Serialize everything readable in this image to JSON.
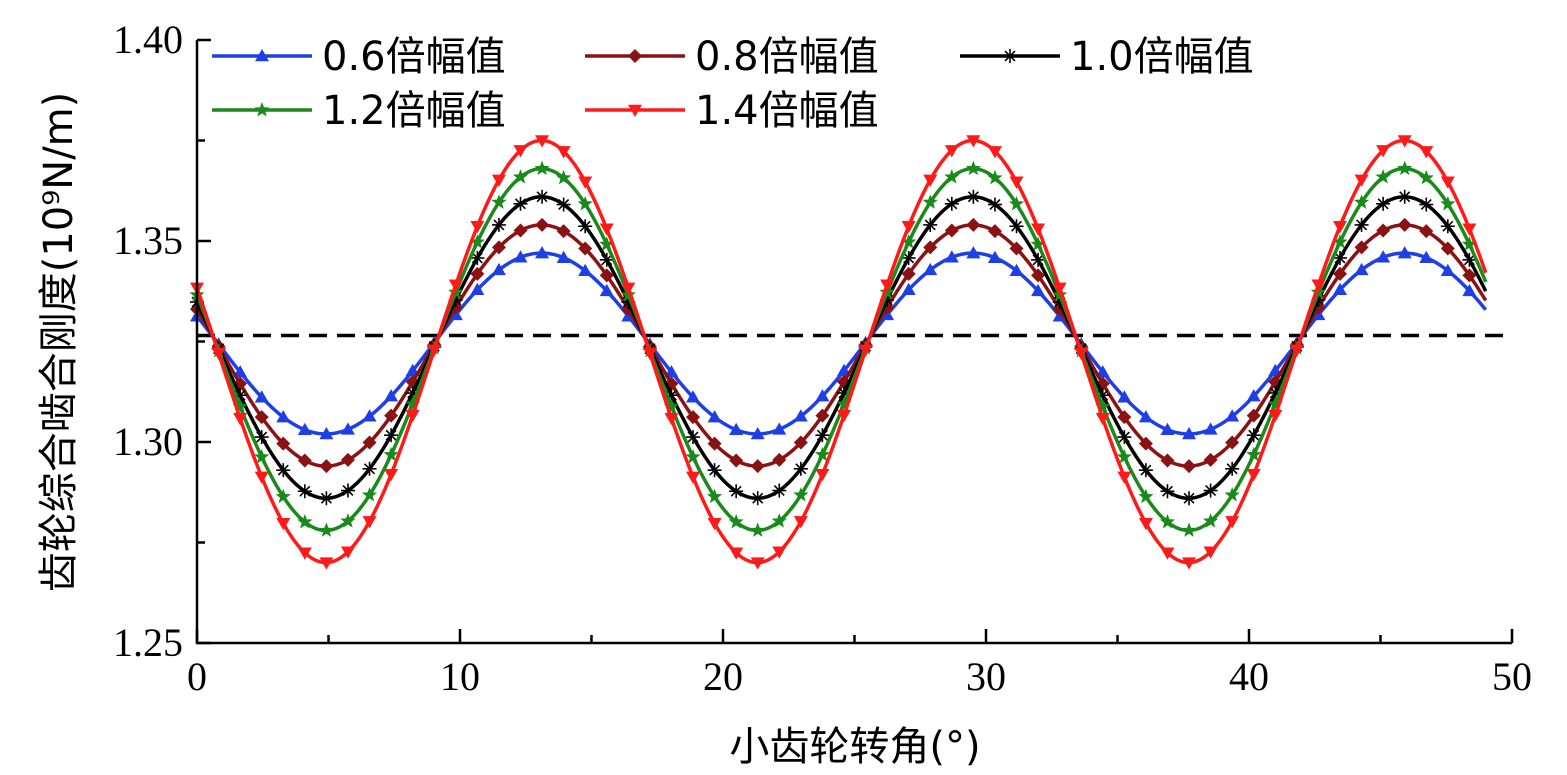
{
  "chart_data": {
    "type": "line",
    "xlabel": "小齿轮转角(°)",
    "ylabel": "齿轮综合啮合刚度(10⁹N/m)",
    "xlim": [
      0,
      50
    ],
    "ylim": [
      1.25,
      1.4
    ],
    "x_ticks": [
      "0",
      "10",
      "20",
      "30",
      "40",
      "50"
    ],
    "y_ticks": [
      "1.25",
      "1.30",
      "1.35",
      "1.40"
    ],
    "grid": false,
    "legend_position": "top",
    "period_deg": 16.4,
    "x_range": [
      0,
      49
    ],
    "reference_line": {
      "y": 1.3265,
      "style": "dashed",
      "color": "#000000"
    },
    "series": [
      {
        "name": "0.6倍幅值",
        "color": "#1f3fe6",
        "marker": "triangle-up",
        "mean": 1.3245,
        "amplitude": 0.0225
      },
      {
        "name": "0.8倍幅值",
        "color": "#8b1212",
        "marker": "diamond",
        "mean": 1.324,
        "amplitude": 0.03
      },
      {
        "name": "1.0倍幅值",
        "color": "#000000",
        "marker": "asterisk",
        "mean": 1.3235,
        "amplitude": 0.0375
      },
      {
        "name": "1.2倍幅值",
        "color": "#1a8a1a",
        "marker": "star",
        "mean": 1.323,
        "amplitude": 0.045
      },
      {
        "name": "1.4倍幅值",
        "color": "#ff1a1a",
        "marker": "triangle-down",
        "mean": 1.3225,
        "amplitude": 0.0525
      }
    ]
  }
}
